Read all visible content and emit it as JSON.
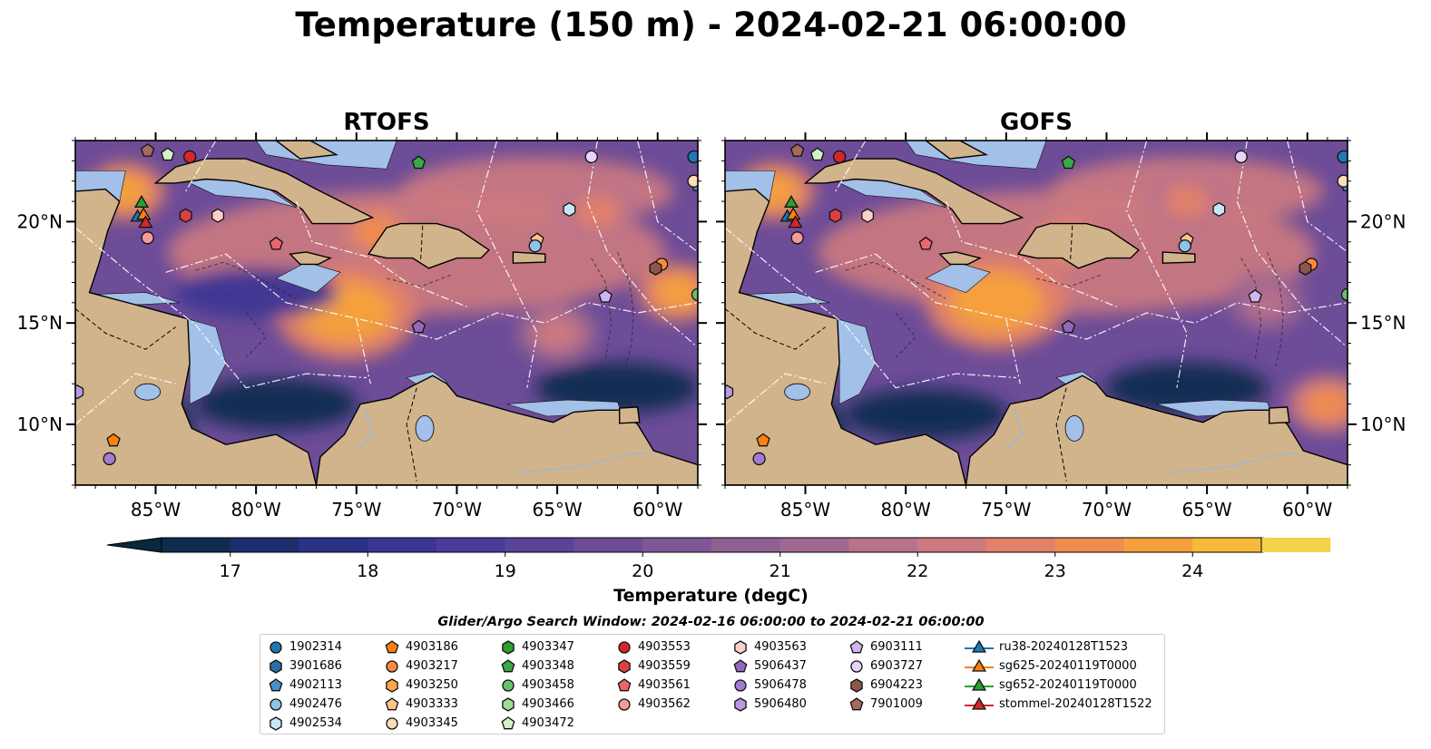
{
  "title": "Temperature (150 m) - 2024-02-21 06:00:00",
  "panels": [
    {
      "title": "RTOFS",
      "key": "rtofs"
    },
    {
      "title": "GOFS",
      "key": "gofs"
    }
  ],
  "map": {
    "lon_range": [
      -89,
      -58
    ],
    "lat_range": [
      7,
      24
    ],
    "lon_ticks": [
      -85,
      -80,
      -75,
      -70,
      -65,
      -60
    ],
    "lon_tick_labels": [
      "85°W",
      "80°W",
      "75°W",
      "70°W",
      "65°W",
      "60°W"
    ],
    "lat_ticks": [
      10,
      15,
      20
    ],
    "lat_tick_labels": [
      "10°N",
      "15°N",
      "20°N"
    ],
    "colors": {
      "land": "#d2b48c",
      "shallow": "#a2c0e8",
      "ocean_cold": "#0d1f35",
      "warm": "#f6a23c",
      "hot": "#e9f65a"
    }
  },
  "colorbar": {
    "label": "Temperature (degC)",
    "min": 16.5,
    "max": 24.5,
    "step": 0.5,
    "ticks": [
      17,
      18,
      19,
      20,
      21,
      22,
      23,
      24
    ],
    "tick_labels": [
      "17",
      "18",
      "19",
      "20",
      "21",
      "22",
      "23",
      "24"
    ],
    "extend": "both",
    "colors": [
      "#062a3a",
      "#0f2c4f",
      "#1c2e6d",
      "#2b3187",
      "#3b3594",
      "#4a3b9a",
      "#5a4399",
      "#6d4c98",
      "#7e5796",
      "#8f6092",
      "#a0688f",
      "#b8728c",
      "#cd7a80",
      "#e18168",
      "#f08c4e",
      "#f5a13b",
      "#f6ba3b",
      "#f2d34a",
      "#e9f65a"
    ]
  },
  "legend_title": "Glider/Argo Search Window: 2024-02-16 06:00:00 to 2024-02-21 06:00:00",
  "legend": {
    "columns": [
      [
        {
          "label": "1902314",
          "marker": "circle",
          "color": "#1f77b4"
        },
        {
          "label": "3901686",
          "marker": "hexagon",
          "color": "#2b6fa8"
        },
        {
          "label": "4902113",
          "marker": "pentagon",
          "color": "#4a90c8"
        },
        {
          "label": "4902476",
          "marker": "circle",
          "color": "#8fc4ea"
        },
        {
          "label": "4902534",
          "marker": "hexagon",
          "color": "#c9e6f7"
        }
      ],
      [
        {
          "label": "4903186",
          "marker": "pentagon",
          "color": "#ff7f0e"
        },
        {
          "label": "4903217",
          "marker": "circle",
          "color": "#f98b3c"
        },
        {
          "label": "4903250",
          "marker": "hexagon",
          "color": "#ffa64d"
        },
        {
          "label": "4903333",
          "marker": "pentagon",
          "color": "#ffc38a"
        },
        {
          "label": "4903345",
          "marker": "circle",
          "color": "#ffdcb8"
        }
      ],
      [
        {
          "label": "4903347",
          "marker": "hexagon",
          "color": "#2ca02c"
        },
        {
          "label": "4903348",
          "marker": "pentagon",
          "color": "#3aa846"
        },
        {
          "label": "4903458",
          "marker": "circle",
          "color": "#67c26d"
        },
        {
          "label": "4903466",
          "marker": "hexagon",
          "color": "#9edc97"
        },
        {
          "label": "4903472",
          "marker": "pentagon",
          "color": "#d2f2c8"
        }
      ],
      [
        {
          "label": "4903553",
          "marker": "circle",
          "color": "#d62728"
        },
        {
          "label": "4903559",
          "marker": "hexagon",
          "color": "#de4040"
        },
        {
          "label": "4903561",
          "marker": "pentagon",
          "color": "#e8686a"
        },
        {
          "label": "4903562",
          "marker": "circle",
          "color": "#f59a9a"
        }
      ],
      [
        {
          "label": "4903563",
          "marker": "hexagon",
          "color": "#fbd0cb"
        },
        {
          "label": "5906437",
          "marker": "pentagon",
          "color": "#9467bd"
        },
        {
          "label": "5906478",
          "marker": "circle",
          "color": "#a27cce"
        },
        {
          "label": "5906480",
          "marker": "hexagon",
          "color": "#b99ae0"
        }
      ],
      [
        {
          "label": "6903111",
          "marker": "pentagon",
          "color": "#cfb6f0"
        },
        {
          "label": "6903727",
          "marker": "circle",
          "color": "#e8d3fa"
        },
        {
          "label": "6904223",
          "marker": "hexagon",
          "color": "#8c564b"
        },
        {
          "label": "7901009",
          "marker": "pentagon",
          "color": "#a56a5c"
        }
      ],
      [
        {
          "label": "ru38-20240128T1523",
          "marker": "triangle-line",
          "color": "#1f77b4"
        },
        {
          "label": "sg625-20240119T0000",
          "marker": "triangle-line",
          "color": "#ff7f0e"
        },
        {
          "label": "sg652-20240119T0000",
          "marker": "triangle-line",
          "color": "#2ca02c"
        },
        {
          "label": "stommel-20240128T1522",
          "marker": "triangle-line",
          "color": "#d62728"
        }
      ]
    ]
  },
  "chart_data": {
    "type": "heatmap",
    "title": "Temperature (150 m) - 2024-02-21 06:00:00",
    "xlabel": "",
    "ylabel": "",
    "colorbar_label": "Temperature (degC)",
    "xlim": [
      -89,
      -58
    ],
    "ylim": [
      7,
      24
    ],
    "panels": [
      {
        "name": "RTOFS",
        "warm_cores": [
          {
            "lon": -75.5,
            "lat": 15.5,
            "temp": 24.3
          },
          {
            "lon": -86.5,
            "lat": 21.5,
            "temp": 24.2
          },
          {
            "lon": -74,
            "lat": 19.5,
            "temp": 23.5
          },
          {
            "lon": -63,
            "lat": 20.5,
            "temp": 23.2
          },
          {
            "lon": -65,
            "lat": 14.5,
            "temp": 22.5
          },
          {
            "lon": -59,
            "lat": 16.5,
            "temp": 24
          }
        ],
        "cold_cores": [
          {
            "lon": -62,
            "lat": 11.8,
            "temp": 17
          },
          {
            "lon": -79,
            "lat": 11,
            "temp": 17.4
          },
          {
            "lon": -80,
            "lat": 16.5,
            "temp": 18.5
          },
          {
            "lon": -88,
            "lat": 9,
            "temp": 16.8
          }
        ]
      },
      {
        "name": "GOFS",
        "warm_cores": [
          {
            "lon": -75.5,
            "lat": 16,
            "temp": 24.4
          },
          {
            "lon": -86.5,
            "lat": 21.5,
            "temp": 24.2
          },
          {
            "lon": -72,
            "lat": 19,
            "temp": 23.5
          },
          {
            "lon": -66,
            "lat": 21,
            "temp": 23.2
          },
          {
            "lon": -62,
            "lat": 16,
            "temp": 22.3
          },
          {
            "lon": -59,
            "lat": 11,
            "temp": 23.5
          }
        ],
        "cold_cores": [
          {
            "lon": -66,
            "lat": 11.8,
            "temp": 17.2
          },
          {
            "lon": -79,
            "lat": 10.5,
            "temp": 17.4
          },
          {
            "lon": -88,
            "lat": 9,
            "temp": 16.8
          }
        ]
      }
    ],
    "argo_floats": [
      {
        "id": "1902314",
        "lon": -58.2,
        "lat": 23.2
      },
      {
        "id": "4902113",
        "lon": -58,
        "lat": 21.8
      },
      {
        "id": "4903345",
        "lon": -58.2,
        "lat": 22
      },
      {
        "id": "6903727",
        "lon": -63.3,
        "lat": 23.2
      },
      {
        "id": "4902534",
        "lon": -64.4,
        "lat": 20.6
      },
      {
        "id": "4903348",
        "lon": -71.9,
        "lat": 22.9
      },
      {
        "id": "4903553",
        "lon": -83.3,
        "lat": 23.2
      },
      {
        "id": "4903472",
        "lon": -84.4,
        "lat": 23.3
      },
      {
        "id": "7901009",
        "lon": -85.4,
        "lat": 23.5
      },
      {
        "id": "4903559",
        "lon": -83.5,
        "lat": 20.3
      },
      {
        "id": "4903563",
        "lon": -81.9,
        "lat": 20.3
      },
      {
        "id": "4903561",
        "lon": -79,
        "lat": 18.9
      },
      {
        "id": "4903562",
        "lon": -85.4,
        "lat": 19.2
      },
      {
        "id": "4903333",
        "lon": -66,
        "lat": 19.1
      },
      {
        "id": "4902476",
        "lon": -66.1,
        "lat": 18.8
      },
      {
        "id": "4903217",
        "lon": -59.8,
        "lat": 17.9
      },
      {
        "id": "6904223",
        "lon": -60.1,
        "lat": 17.7
      },
      {
        "id": "6903111",
        "lon": -62.6,
        "lat": 16.3
      },
      {
        "id": "4903458",
        "lon": -58,
        "lat": 16.4
      },
      {
        "id": "5906437",
        "lon": -71.9,
        "lat": 14.8
      },
      {
        "id": "4903186",
        "lon": -87.1,
        "lat": 9.2
      },
      {
        "id": "5906478",
        "lon": -87.3,
        "lat": 8.3
      },
      {
        "id": "5906480",
        "lon": -88.9,
        "lat": 11.6
      }
    ],
    "glider_tracks": [
      {
        "id": "ru38-20240128T1523",
        "lon": -85.9,
        "lat": 20.2
      },
      {
        "id": "sg625-20240119T0000",
        "lon": -85.6,
        "lat": 20.3
      },
      {
        "id": "sg652-20240119T0000",
        "lon": -85.7,
        "lat": 20.9
      },
      {
        "id": "stommel-20240128T1522",
        "lon": -85.5,
        "lat": 19.9
      }
    ]
  }
}
